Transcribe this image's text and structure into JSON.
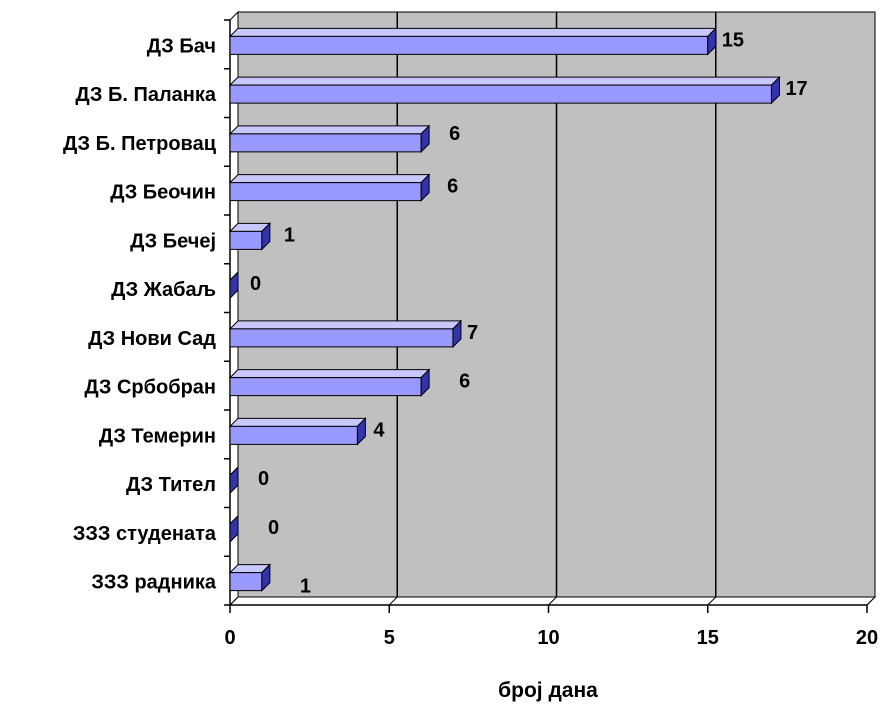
{
  "chart_data": {
    "type": "bar",
    "orientation": "horizontal",
    "style": "3d",
    "title": "",
    "xlabel": "број дана",
    "ylabel": "",
    "xlim": [
      0,
      20
    ],
    "xticks": [
      "0",
      "5",
      "10",
      "15",
      "20"
    ],
    "grid": true,
    "legend": "none",
    "categories": [
      "ДЗ Бач",
      "ДЗ Б. Паланка",
      "ДЗ Б. Петровац",
      "ДЗ Беочин",
      "ДЗ Бечеј",
      "ДЗ Жабаљ",
      "ДЗ Нови Сад",
      "ДЗ Србобран",
      "ДЗ Темерин",
      "ДЗ Тител",
      "ЗЗЗ студената",
      "ЗЗЗ радника"
    ],
    "values": [
      15,
      17,
      6,
      6,
      1,
      0,
      7,
      6,
      4,
      0,
      0,
      1
    ],
    "data_labels": [
      "15",
      "17",
      "6",
      "6",
      "1",
      "0",
      "7",
      "6",
      "4",
      "0",
      "0",
      "1"
    ],
    "colors": {
      "bar_front": "#9999ff",
      "bar_top": "#c8c8ff",
      "bar_side": "#3333aa",
      "plot_bg": "#c0c0c0",
      "gridline": "#000000"
    }
  }
}
